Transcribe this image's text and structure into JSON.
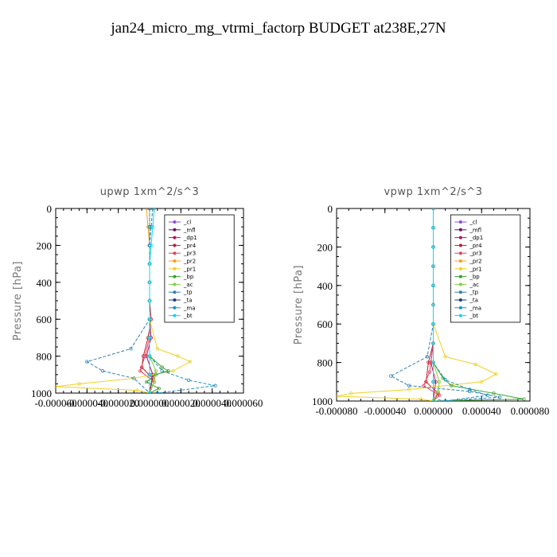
{
  "figure_title": "jan24_micro_mg_vtrmi_factorp  BUDGET at238E,27N",
  "colors": {
    "cl": "#8a4fd6",
    "mfl": "#6b0f6b",
    "dp1": "#b8105f",
    "pr4": "#c41a2b",
    "pr3": "#e8405a",
    "pr2": "#f4a020",
    "pr1": "#f0d020",
    "bp": "#3aa030",
    "ac": "#80d040",
    "tp": "#3080b0",
    "ta": "#1a3a80",
    "ma": "#2090c0",
    "bt": "#10d8e8"
  },
  "chart_data": [
    {
      "type": "line",
      "title": "upwp   1xm^2/s^3",
      "ylabel": "Pressure [hPa]",
      "xlabel": "",
      "ylim": [
        1000,
        0
      ],
      "xlim": [
        -6e-05,
        6e-05
      ],
      "xticks": [
        "-0.000060",
        "-0.000040",
        "-0.000020",
        "0.000000",
        "0.000020",
        "0.000040",
        "0.000060"
      ],
      "xtick_values": [
        -6e-05,
        -4e-05,
        -2e-05,
        0,
        2e-05,
        4e-05,
        6e-05
      ],
      "yticks": [
        "0",
        "200",
        "400",
        "600",
        "800",
        "1000"
      ],
      "ytick_values": [
        0,
        200,
        400,
        600,
        800,
        1000
      ],
      "legend": [
        "_cl",
        "_mfl",
        "_dp1",
        "_pr4",
        "_pr3",
        "_pr2",
        "_pr1",
        "_bp",
        "_ac",
        "_tp",
        "_ta",
        "_ma",
        "_bt"
      ],
      "legend_position": "top-right",
      "series": [
        {
          "name": "_cl",
          "key": "cl",
          "x": [
            0,
            0,
            0,
            0,
            0,
            0,
            0,
            0,
            0,
            0,
            0
          ],
          "y": [
            0,
            100,
            200,
            300,
            400,
            500,
            600,
            700,
            800,
            900,
            1000
          ]
        },
        {
          "name": "_mfl",
          "key": "mfl",
          "x": [
            0,
            0,
            0,
            0,
            0,
            0,
            0,
            0,
            0,
            0,
            0
          ],
          "y": [
            0,
            100,
            200,
            300,
            400,
            500,
            600,
            700,
            800,
            900,
            1000
          ]
        },
        {
          "name": "_dp1",
          "key": "dp1",
          "x": [
            0,
            0,
            0,
            0,
            0,
            0,
            0,
            1e-06,
            -2e-06,
            2e-06,
            0
          ],
          "y": [
            0,
            100,
            200,
            300,
            400,
            500,
            600,
            700,
            800,
            900,
            1000
          ]
        },
        {
          "name": "_pr4",
          "key": "pr4",
          "x": [
            0,
            0,
            0,
            0,
            0,
            0,
            1e-06,
            -1e-06,
            -4e-06,
            -5e-06,
            2e-06,
            0
          ],
          "y": [
            0,
            100,
            200,
            300,
            400,
            500,
            600,
            700,
            800,
            860,
            920,
            1000
          ]
        },
        {
          "name": "_pr3",
          "key": "pr3",
          "x": [
            0,
            0,
            0,
            0,
            0,
            0,
            0,
            0,
            -3e-06,
            -6e-06,
            3e-06,
            0
          ],
          "y": [
            0,
            100,
            200,
            300,
            400,
            500,
            600,
            700,
            800,
            880,
            940,
            1000
          ]
        },
        {
          "name": "_pr2",
          "key": "pr2",
          "x": [
            -2e-06,
            -1e-06,
            0,
            0,
            0,
            0,
            0,
            0,
            0,
            0,
            0
          ],
          "y": [
            0,
            100,
            200,
            300,
            400,
            500,
            600,
            700,
            800,
            900,
            1000
          ]
        },
        {
          "name": "_pr1",
          "key": "pr1",
          "x": [
            0,
            0,
            0,
            0,
            0,
            0,
            0,
            5e-06,
            1.8e-05,
            2.6e-05,
            1.5e-05,
            -1e-05,
            -4.5e-05,
            -6e-05,
            -8e-06,
            0
          ],
          "y": [
            0,
            100,
            200,
            300,
            400,
            500,
            600,
            760,
            800,
            830,
            880,
            920,
            950,
            965,
            985,
            1000
          ]
        },
        {
          "name": "_bp",
          "key": "bp",
          "x": [
            0,
            0,
            0,
            0,
            0,
            0,
            0,
            0,
            8e-06,
            1.2e-05,
            4e-06,
            -2e-06,
            6e-06,
            0
          ],
          "y": [
            0,
            100,
            200,
            300,
            400,
            500,
            600,
            800,
            860,
            880,
            900,
            940,
            975,
            1000
          ]
        },
        {
          "name": "_ac",
          "key": "ac",
          "x": [
            0,
            0,
            0,
            0,
            0,
            0,
            0,
            0,
            4e-06,
            3e-06,
            0
          ],
          "y": [
            0,
            100,
            200,
            300,
            400,
            500,
            600,
            800,
            880,
            940,
            1000
          ]
        },
        {
          "name": "_tp",
          "key": "tp",
          "x": [
            2e-06,
            1e-06,
            0,
            0,
            0,
            0,
            0,
            -1.2e-05,
            -4e-05,
            -3e-05,
            -1e-05,
            0
          ],
          "y": [
            0,
            100,
            200,
            300,
            400,
            500,
            600,
            760,
            830,
            880,
            920,
            1000
          ]
        },
        {
          "name": "_ta",
          "key": "ta",
          "x": [
            0,
            0,
            0,
            0,
            0,
            0,
            0,
            0,
            0,
            0,
            0
          ],
          "y": [
            0,
            100,
            200,
            300,
            400,
            500,
            600,
            700,
            800,
            900,
            1000
          ]
        },
        {
          "name": "_ma",
          "key": "ma",
          "x": [
            0,
            0,
            0,
            0,
            0,
            0,
            0,
            0,
            8e-06,
            2.5e-05,
            4.2e-05,
            5e-06
          ],
          "y": [
            0,
            100,
            200,
            300,
            400,
            500,
            600,
            800,
            880,
            930,
            960,
            1000
          ]
        },
        {
          "name": "_bt",
          "key": "bt",
          "x": [
            3e-06,
            2e-06,
            1e-06,
            0,
            0,
            0,
            0,
            0,
            0,
            0,
            0
          ],
          "y": [
            0,
            100,
            200,
            300,
            400,
            500,
            600,
            700,
            800,
            900,
            1000
          ]
        }
      ]
    },
    {
      "type": "line",
      "title": "vpwp   1xm^2/s^3",
      "ylabel": "Pressure [hPa]",
      "xlabel": "",
      "ylim": [
        1000,
        0
      ],
      "xlim": [
        -8e-05,
        8e-05
      ],
      "xticks": [
        "-0.000080",
        "-0.000040",
        "0.000000",
        "0.000040",
        "0.000080"
      ],
      "xtick_values": [
        -8e-05,
        -4e-05,
        0,
        4e-05,
        8e-05
      ],
      "yticks": [
        "0",
        "200",
        "400",
        "600",
        "800",
        "1000"
      ],
      "ytick_values": [
        0,
        200,
        400,
        600,
        800,
        1000
      ],
      "legend": [
        "_cl",
        "_mfl",
        "_dp1",
        "_pr4",
        "_pr3",
        "_pr2",
        "_pr1",
        "_bp",
        "_ac",
        "_tp",
        "_ta",
        "_ma",
        "_bt"
      ],
      "legend_position": "top-right",
      "series": [
        {
          "name": "_cl",
          "key": "cl",
          "x": [
            0,
            0,
            0,
            0,
            0,
            0,
            0,
            0,
            0,
            0,
            0
          ],
          "y": [
            0,
            100,
            200,
            300,
            400,
            500,
            600,
            700,
            800,
            900,
            1000
          ]
        },
        {
          "name": "_mfl",
          "key": "mfl",
          "x": [
            0,
            0,
            0,
            0,
            0,
            0,
            0,
            0,
            0,
            0,
            0
          ],
          "y": [
            0,
            100,
            200,
            300,
            400,
            500,
            600,
            700,
            800,
            900,
            1000
          ]
        },
        {
          "name": "_dp1",
          "key": "dp1",
          "x": [
            0,
            0,
            0,
            0,
            0,
            0,
            0,
            0,
            -2e-06,
            2e-06,
            0
          ],
          "y": [
            0,
            100,
            200,
            300,
            400,
            500,
            600,
            700,
            800,
            900,
            1000
          ]
        },
        {
          "name": "_pr4",
          "key": "pr4",
          "x": [
            0,
            0,
            0,
            0,
            0,
            0,
            0,
            0,
            -4e-06,
            -6e-06,
            4e-06,
            0
          ],
          "y": [
            0,
            100,
            200,
            300,
            400,
            500,
            600,
            700,
            800,
            900,
            960,
            1000
          ]
        },
        {
          "name": "_pr3",
          "key": "pr3",
          "x": [
            0,
            0,
            0,
            0,
            0,
            0,
            0,
            0,
            -3e-06,
            -8e-06,
            5e-06,
            0
          ],
          "y": [
            0,
            100,
            200,
            300,
            400,
            500,
            600,
            700,
            850,
            920,
            970,
            1000
          ]
        },
        {
          "name": "_pr2",
          "key": "pr2",
          "x": [
            0,
            0,
            0,
            0,
            0,
            0,
            0,
            0,
            0,
            0,
            0
          ],
          "y": [
            0,
            100,
            200,
            300,
            400,
            500,
            600,
            700,
            800,
            900,
            1000
          ]
        },
        {
          "name": "_pr1",
          "key": "pr1",
          "x": [
            0,
            0,
            0,
            0,
            0,
            0,
            0,
            1e-05,
            3.5e-05,
            5.2e-05,
            4e-05,
            -2e-05,
            -6.8e-05,
            -8e-05,
            -1e-05,
            0
          ],
          "y": [
            0,
            100,
            200,
            300,
            400,
            500,
            600,
            770,
            810,
            860,
            900,
            940,
            960,
            975,
            990,
            1000
          ]
        },
        {
          "name": "_bp",
          "key": "bp",
          "x": [
            0,
            0,
            0,
            0,
            0,
            0,
            0,
            0,
            8e-06,
            1.5e-05,
            5e-05,
            7.5e-05,
            0
          ],
          "y": [
            0,
            100,
            200,
            300,
            400,
            500,
            600,
            800,
            880,
            920,
            960,
            990,
            1000
          ]
        },
        {
          "name": "_ac",
          "key": "ac",
          "x": [
            0,
            0,
            0,
            0,
            0,
            0,
            0,
            0,
            5e-06,
            4e-06,
            0
          ],
          "y": [
            0,
            100,
            200,
            300,
            400,
            500,
            600,
            800,
            900,
            950,
            1000
          ]
        },
        {
          "name": "_tp",
          "key": "tp",
          "x": [
            0,
            0,
            0,
            0,
            0,
            0,
            0,
            -5e-06,
            -3.5e-05,
            -2e-05,
            3e-05,
            5.5e-05,
            5e-06
          ],
          "y": [
            0,
            100,
            200,
            300,
            400,
            500,
            600,
            770,
            870,
            920,
            950,
            980,
            1000
          ]
        },
        {
          "name": "_ta",
          "key": "ta",
          "x": [
            0,
            0,
            0,
            0,
            0,
            0,
            0,
            0,
            0,
            0,
            0
          ],
          "y": [
            0,
            100,
            200,
            300,
            400,
            500,
            600,
            700,
            800,
            900,
            1000
          ]
        },
        {
          "name": "_ma",
          "key": "ma",
          "x": [
            0,
            0,
            0,
            0,
            0,
            0,
            0,
            0,
            1e-05,
            3e-05,
            4.5e-05,
            1e-05
          ],
          "y": [
            0,
            100,
            200,
            300,
            400,
            500,
            600,
            800,
            890,
            940,
            970,
            1000
          ]
        },
        {
          "name": "_bt",
          "key": "bt",
          "x": [
            0,
            0,
            0,
            0,
            0,
            0,
            0,
            0,
            0,
            0,
            0
          ],
          "y": [
            0,
            100,
            200,
            300,
            400,
            500,
            600,
            700,
            800,
            900,
            1000
          ]
        }
      ]
    }
  ]
}
